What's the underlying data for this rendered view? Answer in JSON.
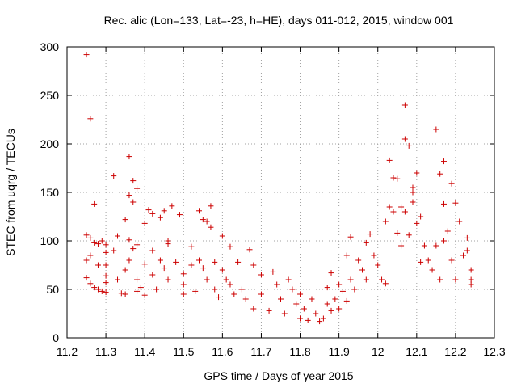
{
  "chart_data": {
    "type": "scatter",
    "title": "Rec. alic (Lon=133, Lat=-23, h=HE), days 011-012, 2015, window 001",
    "xlabel": "GPS time / Days of year 2015",
    "ylabel": "STEC from uqrg / TECUs",
    "xlim": [
      11.2,
      12.3
    ],
    "ylim": [
      0,
      300
    ],
    "xticks": [
      "11.2",
      "11.3",
      "11.4",
      "11.5",
      "11.6",
      "11.7",
      "11.8",
      "11.9",
      "12",
      "12.1",
      "12.2",
      "12.3"
    ],
    "yticks": [
      "0",
      "50",
      "100",
      "150",
      "200",
      "250",
      "300"
    ],
    "grid": true,
    "marker": "plus",
    "color": "#cc0000",
    "series": [
      {
        "points": [
          [
            11.25,
            292
          ],
          [
            11.26,
            226
          ],
          [
            11.27,
            138
          ],
          [
            11.25,
            106
          ],
          [
            11.26,
            103
          ],
          [
            11.27,
            98
          ],
          [
            11.28,
            97
          ],
          [
            11.29,
            100
          ],
          [
            11.25,
            80
          ],
          [
            11.26,
            85
          ],
          [
            11.28,
            75
          ],
          [
            11.25,
            62
          ],
          [
            11.26,
            56
          ],
          [
            11.27,
            52
          ],
          [
            11.28,
            50
          ],
          [
            11.29,
            48
          ],
          [
            11.3,
            47
          ],
          [
            11.3,
            57
          ],
          [
            11.3,
            64
          ],
          [
            11.3,
            75
          ],
          [
            11.3,
            88
          ],
          [
            11.3,
            96
          ],
          [
            11.32,
            167
          ],
          [
            11.32,
            90
          ],
          [
            11.33,
            105
          ],
          [
            11.33,
            60
          ],
          [
            11.34,
            46
          ],
          [
            11.35,
            45
          ],
          [
            11.35,
            70
          ],
          [
            11.35,
            122
          ],
          [
            11.36,
            187
          ],
          [
            11.36,
            147
          ],
          [
            11.36,
            101
          ],
          [
            11.36,
            80
          ],
          [
            11.37,
            140
          ],
          [
            11.37,
            162
          ],
          [
            11.37,
            92
          ],
          [
            11.38,
            154
          ],
          [
            11.38,
            96
          ],
          [
            11.38,
            60
          ],
          [
            11.38,
            48
          ],
          [
            11.39,
            52
          ],
          [
            11.4,
            118
          ],
          [
            11.4,
            76
          ],
          [
            11.4,
            44
          ],
          [
            11.41,
            132
          ],
          [
            11.42,
            128
          ],
          [
            11.42,
            90
          ],
          [
            11.42,
            65
          ],
          [
            11.43,
            50
          ],
          [
            11.44,
            124
          ],
          [
            11.44,
            80
          ],
          [
            11.45,
            131
          ],
          [
            11.45,
            72
          ],
          [
            11.46,
            100
          ],
          [
            11.46,
            97
          ],
          [
            11.46,
            60
          ],
          [
            11.47,
            136
          ],
          [
            11.48,
            78
          ],
          [
            11.49,
            127
          ],
          [
            11.5,
            66
          ],
          [
            11.5,
            55
          ],
          [
            11.5,
            45
          ],
          [
            11.52,
            94
          ],
          [
            11.52,
            75
          ],
          [
            11.53,
            48
          ],
          [
            11.54,
            131
          ],
          [
            11.54,
            80
          ],
          [
            11.55,
            122
          ],
          [
            11.55,
            72
          ],
          [
            11.56,
            120
          ],
          [
            11.56,
            60
          ],
          [
            11.57,
            136
          ],
          [
            11.57,
            114
          ],
          [
            11.58,
            78
          ],
          [
            11.58,
            50
          ],
          [
            11.59,
            42
          ],
          [
            11.6,
            105
          ],
          [
            11.6,
            70
          ],
          [
            11.61,
            60
          ],
          [
            11.62,
            94
          ],
          [
            11.62,
            55
          ],
          [
            11.63,
            45
          ],
          [
            11.64,
            78
          ],
          [
            11.65,
            50
          ],
          [
            11.66,
            40
          ],
          [
            11.67,
            91
          ],
          [
            11.68,
            75
          ],
          [
            11.68,
            30
          ],
          [
            11.7,
            65
          ],
          [
            11.7,
            45
          ],
          [
            11.72,
            28
          ],
          [
            11.73,
            68
          ],
          [
            11.74,
            55
          ],
          [
            11.75,
            40
          ],
          [
            11.76,
            25
          ],
          [
            11.77,
            60
          ],
          [
            11.78,
            50
          ],
          [
            11.79,
            35
          ],
          [
            11.8,
            20
          ],
          [
            11.8,
            45
          ],
          [
            11.81,
            30
          ],
          [
            11.82,
            18
          ],
          [
            11.83,
            40
          ],
          [
            11.84,
            25
          ],
          [
            11.85,
            17
          ],
          [
            11.86,
            20
          ],
          [
            11.87,
            35
          ],
          [
            11.87,
            52
          ],
          [
            11.88,
            67
          ],
          [
            11.88,
            28
          ],
          [
            11.89,
            40
          ],
          [
            11.9,
            55
          ],
          [
            11.9,
            30
          ],
          [
            11.91,
            48
          ],
          [
            11.92,
            85
          ],
          [
            11.92,
            38
          ],
          [
            11.93,
            104
          ],
          [
            11.93,
            60
          ],
          [
            11.94,
            50
          ],
          [
            11.95,
            80
          ],
          [
            11.96,
            70
          ],
          [
            11.97,
            98
          ],
          [
            11.97,
            60
          ],
          [
            11.98,
            107
          ],
          [
            11.99,
            85
          ],
          [
            12.0,
            75
          ],
          [
            12.01,
            60
          ],
          [
            12.02,
            120
          ],
          [
            12.02,
            56
          ],
          [
            12.03,
            183
          ],
          [
            12.03,
            135
          ],
          [
            12.04,
            165
          ],
          [
            12.04,
            130
          ],
          [
            12.05,
            164
          ],
          [
            12.05,
            108
          ],
          [
            12.06,
            135
          ],
          [
            12.06,
            95
          ],
          [
            12.07,
            240
          ],
          [
            12.07,
            205
          ],
          [
            12.07,
            130
          ],
          [
            12.08,
            198
          ],
          [
            12.08,
            106
          ],
          [
            12.09,
            150
          ],
          [
            12.09,
            155
          ],
          [
            12.09,
            140
          ],
          [
            12.1,
            170
          ],
          [
            12.1,
            118
          ],
          [
            12.11,
            78
          ],
          [
            12.11,
            125
          ],
          [
            12.12,
            95
          ],
          [
            12.13,
            80
          ],
          [
            12.14,
            70
          ],
          [
            12.15,
            215
          ],
          [
            12.15,
            95
          ],
          [
            12.16,
            169
          ],
          [
            12.16,
            60
          ],
          [
            12.17,
            182
          ],
          [
            12.17,
            138
          ],
          [
            12.17,
            100
          ],
          [
            12.18,
            110
          ],
          [
            12.19,
            159
          ],
          [
            12.19,
            80
          ],
          [
            12.2,
            139
          ],
          [
            12.2,
            60
          ],
          [
            12.21,
            120
          ],
          [
            12.22,
            85
          ],
          [
            12.23,
            103
          ],
          [
            12.23,
            90
          ],
          [
            12.24,
            70
          ],
          [
            12.24,
            55
          ],
          [
            12.24,
            60
          ]
        ]
      }
    ]
  }
}
